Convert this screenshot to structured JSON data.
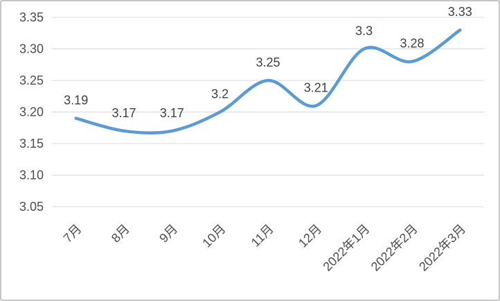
{
  "chart_data": {
    "type": "line",
    "categories": [
      "7月",
      "8月",
      "9月",
      "10月",
      "11月",
      "12月",
      "2022年1月",
      "2022年2月",
      "2022年3月"
    ],
    "values": [
      3.19,
      3.17,
      3.17,
      3.2,
      3.25,
      3.21,
      3.3,
      3.28,
      3.33
    ],
    "data_labels": [
      "3.19",
      "3.17",
      "3.17",
      "3.2",
      "3.25",
      "3.21",
      "3.3",
      "3.28",
      "3.33"
    ],
    "title": "",
    "xlabel": "",
    "ylabel": "",
    "ylim": [
      3.05,
      3.35
    ],
    "yticks": [
      3.05,
      3.1,
      3.15,
      3.2,
      3.25,
      3.3,
      3.35
    ],
    "ytick_labels": [
      "3.05",
      "3.10",
      "3.15",
      "3.20",
      "3.25",
      "3.30",
      "3.35"
    ],
    "grid": true,
    "legend": "none",
    "smooth": true,
    "x_label_rotation_deg": -45,
    "colors": {
      "line": "#5B9BD5",
      "gridline": "#D9D9D9",
      "axis_label": "#4d4d4d",
      "data_label": "#3f3f3f",
      "frame_border": "#c6c6c6",
      "background": "#ffffff"
    }
  }
}
